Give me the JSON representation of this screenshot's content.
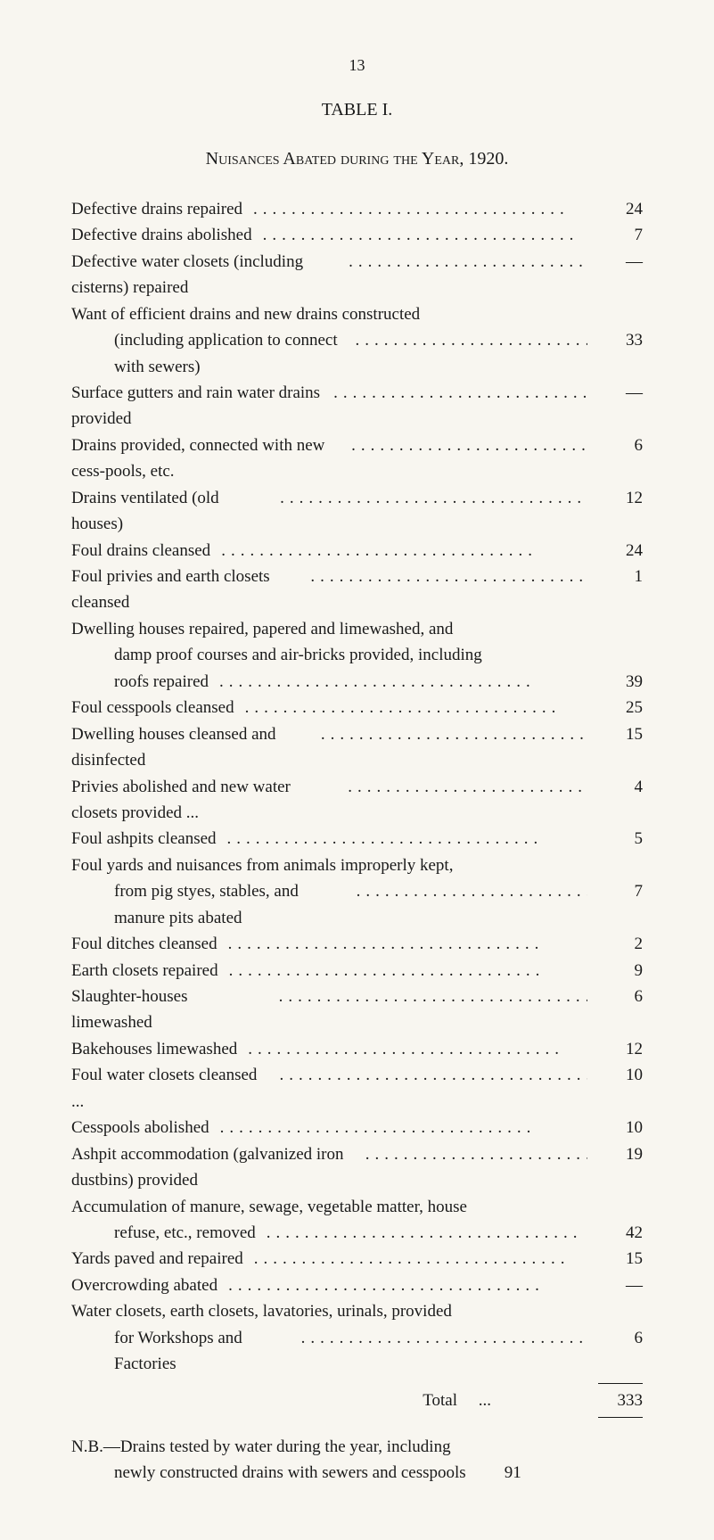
{
  "page_number": "13",
  "table_title": "TABLE I.",
  "subtitle": "Nuisances Abated during the Year, 1920.",
  "dots": ".................................",
  "items": [
    {
      "label": "Defective drains repaired",
      "value": "24",
      "indent": false,
      "cont": false
    },
    {
      "label": "Defective drains abolished",
      "value": "7",
      "indent": false,
      "cont": false
    },
    {
      "label": "Defective water closets (including cisterns) repaired",
      "value": "—",
      "indent": false,
      "cont": false
    },
    {
      "label": "Want of efficient drains and new drains constructed",
      "value": "",
      "indent": false,
      "cont": true
    },
    {
      "label": "(including application to connect with sewers)",
      "value": "33",
      "indent": true,
      "cont": false
    },
    {
      "label": "Surface gutters and rain water drains provided",
      "value": "—",
      "indent": false,
      "cont": false
    },
    {
      "label": "Drains provided, connected with new cess-pools, etc.",
      "value": "6",
      "indent": false,
      "cont": false
    },
    {
      "label": "Drains ventilated (old houses)",
      "value": "12",
      "indent": false,
      "cont": false
    },
    {
      "label": "Foul drains cleansed",
      "value": "24",
      "indent": false,
      "cont": false
    },
    {
      "label": "Foul privies and earth closets cleansed",
      "value": "1",
      "indent": false,
      "cont": false
    },
    {
      "label": "Dwelling houses repaired, papered and limewashed, and",
      "value": "",
      "indent": false,
      "cont": true
    },
    {
      "label": "damp proof courses and air-bricks provided, including",
      "value": "",
      "indent": true,
      "cont": true
    },
    {
      "label": "roofs repaired",
      "value": "39",
      "indent": true,
      "cont": false
    },
    {
      "label": "Foul cesspools cleansed",
      "value": "25",
      "indent": false,
      "cont": false
    },
    {
      "label": "Dwelling houses cleansed and disinfected",
      "value": "15",
      "indent": false,
      "cont": false
    },
    {
      "label": "Privies abolished and new water closets provided ...",
      "value": "4",
      "indent": false,
      "cont": false
    },
    {
      "label": "Foul ashpits cleansed",
      "value": "5",
      "indent": false,
      "cont": false
    },
    {
      "label": "Foul yards and nuisances from animals improperly kept,",
      "value": "",
      "indent": false,
      "cont": true
    },
    {
      "label": "from pig styes, stables, and manure pits abated",
      "value": "7",
      "indent": true,
      "cont": false
    },
    {
      "label": "Foul ditches cleansed",
      "value": "2",
      "indent": false,
      "cont": false
    },
    {
      "label": "Earth closets repaired",
      "value": "9",
      "indent": false,
      "cont": false
    },
    {
      "label": "Slaughter-houses limewashed",
      "value": "6",
      "indent": false,
      "cont": false
    },
    {
      "label": "Bakehouses limewashed",
      "value": "12",
      "indent": false,
      "cont": false
    },
    {
      "label": "Foul water closets cleansed ...",
      "value": "10",
      "indent": false,
      "cont": false
    },
    {
      "label": "Cesspools abolished",
      "value": "10",
      "indent": false,
      "cont": false
    },
    {
      "label": "Ashpit accommodation (galvanized iron dustbins) provided",
      "value": "19",
      "indent": false,
      "cont": false
    },
    {
      "label": "Accumulation of manure, sewage, vegetable matter, house",
      "value": "",
      "indent": false,
      "cont": true
    },
    {
      "label": "refuse, etc., removed",
      "value": "42",
      "indent": true,
      "cont": false
    },
    {
      "label": "Yards paved and repaired",
      "value": "15",
      "indent": false,
      "cont": false
    },
    {
      "label": "Overcrowding abated",
      "value": "—",
      "indent": false,
      "cont": false
    },
    {
      "label": "Water closets, earth closets, lavatories, urinals, provided",
      "value": "",
      "indent": false,
      "cont": true
    },
    {
      "label": "for Workshops and Factories",
      "value": "6",
      "indent": true,
      "cont": false
    }
  ],
  "total_label": "Total",
  "total_dots": "...",
  "total_value": "333",
  "nb_line1": "N.B.—Drains tested by water during the year, including",
  "nb_line2": "newly constructed drains with sewers and cesspools",
  "nb_value": "91"
}
